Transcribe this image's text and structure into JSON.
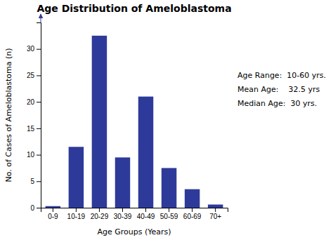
{
  "chart_data": {
    "type": "bar",
    "title": "Age Distribution of Ameloblastoma",
    "categories": [
      "0-9",
      "10-19",
      "20-29",
      "30-39",
      "40-49",
      "50-59",
      "60-69",
      "70+"
    ],
    "values": [
      0.3,
      11.5,
      32.5,
      9.5,
      21,
      7.5,
      3.5,
      0.6
    ],
    "color": "#2e3a99",
    "xlabel": "Age Groups (Years)",
    "ylabel": "No. of Cases of Ameloblastoma (n)",
    "ylim": [
      0,
      35
    ],
    "yticks": [
      0,
      5,
      10,
      15,
      20,
      25,
      30
    ],
    "annotations": [
      "Age Range:  10-60 yrs.",
      "Mean Age:    32.5 yrs",
      "Median Age:  30 yrs."
    ],
    "grid": false
  }
}
